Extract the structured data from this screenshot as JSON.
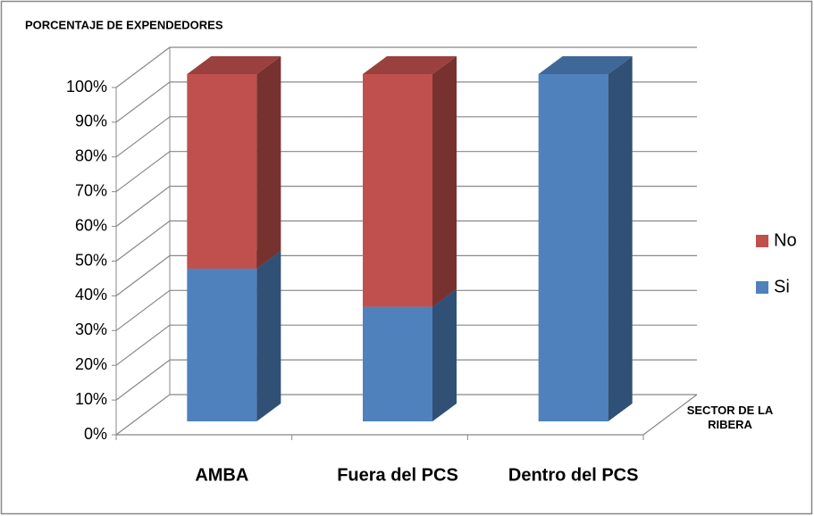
{
  "chart_data": {
    "type": "bar3d_stacked",
    "ylabel": "PORCENTAJE DE EXPENDEDORES",
    "xlabel": "SECTOR DE LA RIBERA",
    "categories": [
      "AMBA",
      "Fuera del PCS",
      "Dentro del PCS"
    ],
    "series": [
      {
        "name": "Si",
        "color": "#4f81bd",
        "values": [
          44,
          33,
          100
        ]
      },
      {
        "name": "No",
        "color": "#c0504d",
        "values": [
          56,
          67,
          0
        ]
      }
    ],
    "ylim": [
      0,
      100
    ],
    "yticks": [
      {
        "value": 0,
        "label": "0%"
      },
      {
        "value": 10,
        "label": "10%"
      },
      {
        "value": 20,
        "label": "20%"
      },
      {
        "value": 30,
        "label": "30%"
      },
      {
        "value": 40,
        "label": "40%"
      },
      {
        "value": 50,
        "label": "50%"
      },
      {
        "value": 60,
        "label": "60%"
      },
      {
        "value": 70,
        "label": "70%"
      },
      {
        "value": 80,
        "label": "80%"
      },
      {
        "value": 90,
        "label": "90%"
      },
      {
        "value": 100,
        "label": "100%"
      }
    ],
    "grid": true,
    "legend": "right"
  }
}
